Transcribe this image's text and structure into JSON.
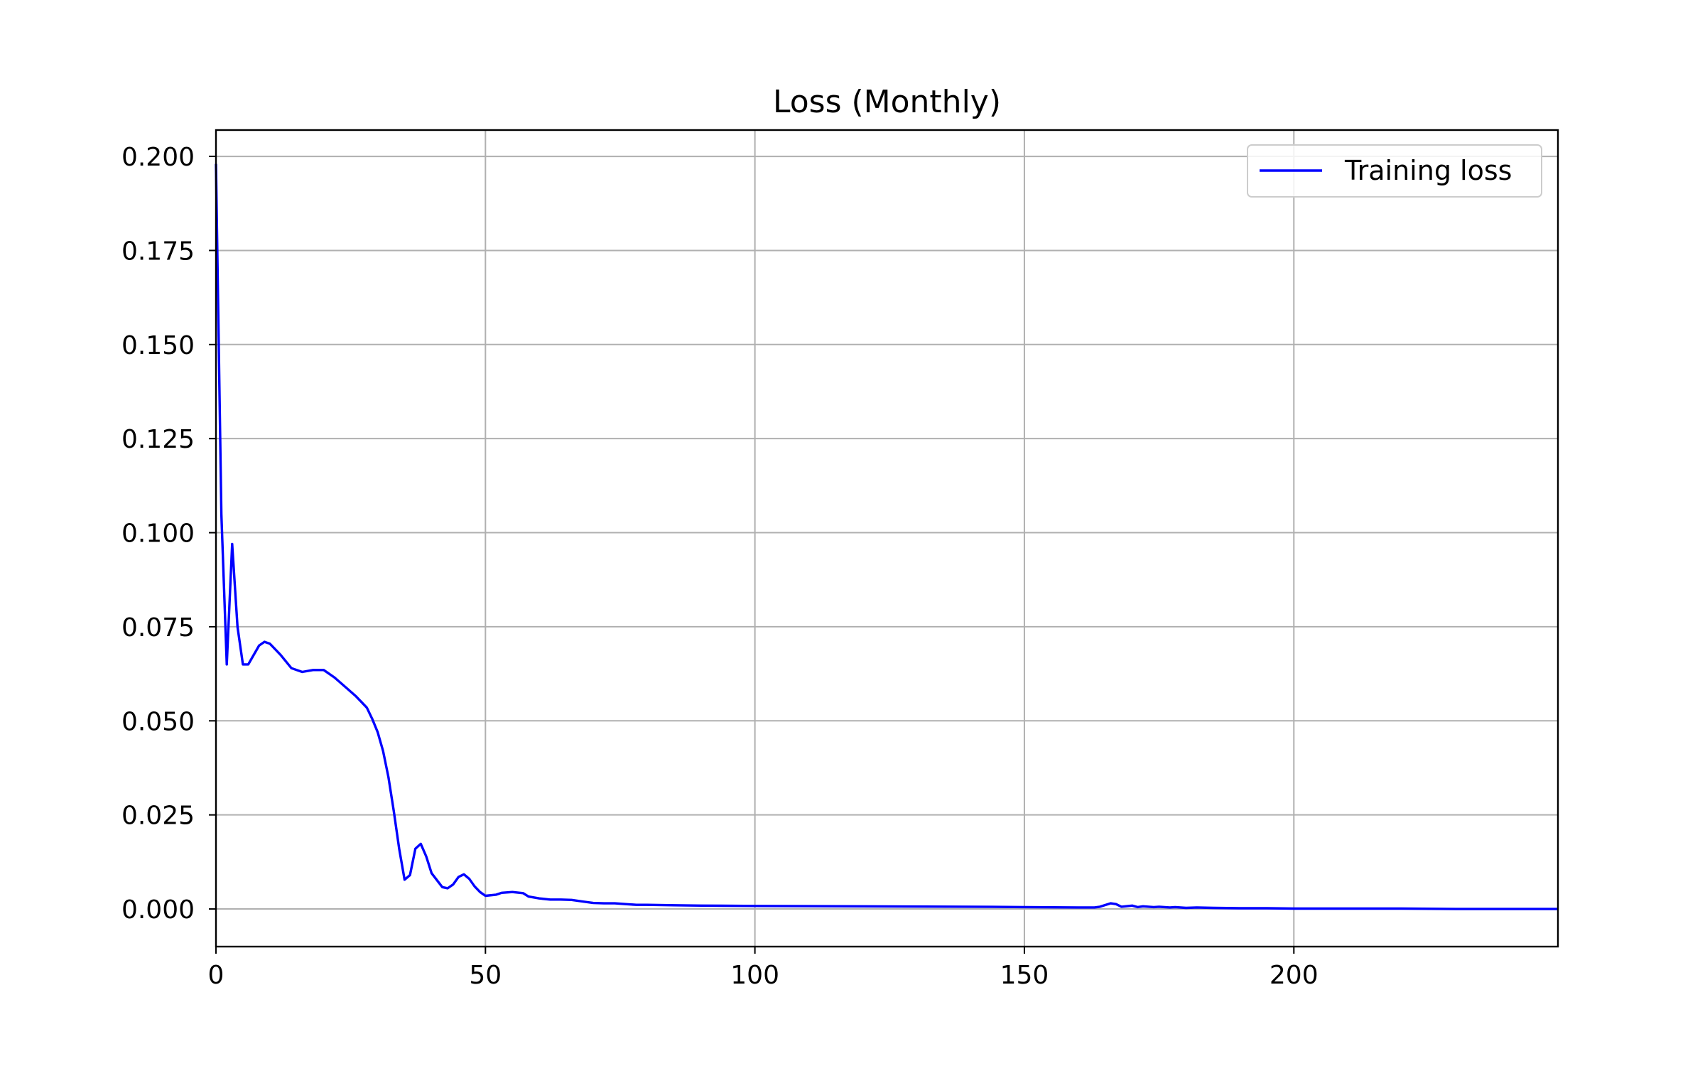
{
  "chart_data": {
    "type": "line",
    "title": "Loss (Monthly)",
    "xlabel": "",
    "ylabel": "",
    "xlim": [
      0,
      249
    ],
    "ylim": [
      -0.01,
      0.207
    ],
    "x_ticks": [
      0,
      50,
      100,
      150,
      200
    ],
    "x_tick_labels": [
      "0",
      "50",
      "100",
      "150",
      "200"
    ],
    "y_ticks": [
      0.0,
      0.025,
      0.05,
      0.075,
      0.1,
      0.125,
      0.15,
      0.175,
      0.2
    ],
    "y_tick_labels": [
      "0.000",
      "0.025",
      "0.050",
      "0.075",
      "0.100",
      "0.125",
      "0.150",
      "0.175",
      "0.200"
    ],
    "grid": true,
    "legend_position": "top-right",
    "series": [
      {
        "name": "Training loss",
        "color": "#0000ff",
        "x": [
          0,
          1,
          2,
          3,
          4,
          5,
          6,
          8,
          9,
          10,
          12,
          14,
          16,
          18,
          20,
          22,
          24,
          26,
          28,
          29,
          30,
          31,
          32,
          33,
          34,
          35,
          36,
          37,
          38,
          39,
          40,
          42,
          43,
          44,
          45,
          46,
          47,
          48,
          49,
          50,
          52,
          53,
          55,
          57,
          58,
          60,
          62,
          64,
          66,
          68,
          70,
          72,
          74,
          76,
          78,
          80,
          85,
          90,
          100,
          120,
          140,
          150,
          160,
          163,
          164,
          166,
          167,
          168,
          170,
          171,
          172,
          174,
          175,
          177,
          178,
          180,
          182,
          185,
          190,
          195,
          200,
          210,
          220,
          230,
          240,
          249
        ],
        "values": [
          0.198,
          0.105,
          0.065,
          0.097,
          0.075,
          0.065,
          0.065,
          0.07,
          0.071,
          0.0705,
          0.0675,
          0.064,
          0.063,
          0.0635,
          0.0635,
          0.0615,
          0.059,
          0.0565,
          0.0535,
          0.0505,
          0.047,
          0.042,
          0.035,
          0.026,
          0.016,
          0.0078,
          0.009,
          0.016,
          0.0173,
          0.014,
          0.0095,
          0.0058,
          0.0055,
          0.0065,
          0.0085,
          0.0092,
          0.008,
          0.006,
          0.0045,
          0.0035,
          0.0038,
          0.0043,
          0.0045,
          0.0042,
          0.0033,
          0.0028,
          0.0025,
          0.0025,
          0.0024,
          0.002,
          0.0016,
          0.0015,
          0.0015,
          0.0013,
          0.0011,
          0.0011,
          0.001,
          0.0009,
          0.0008,
          0.0007,
          0.0006,
          0.0005,
          0.0004,
          0.0004,
          0.0006,
          0.0015,
          0.0013,
          0.0006,
          0.0009,
          0.0005,
          0.0007,
          0.0005,
          0.0006,
          0.0004,
          0.0005,
          0.0003,
          0.0004,
          0.0003,
          0.0002,
          0.0002,
          0.0001,
          0.0001,
          0.0001,
          0.0,
          0.0,
          0.0
        ]
      }
    ]
  }
}
